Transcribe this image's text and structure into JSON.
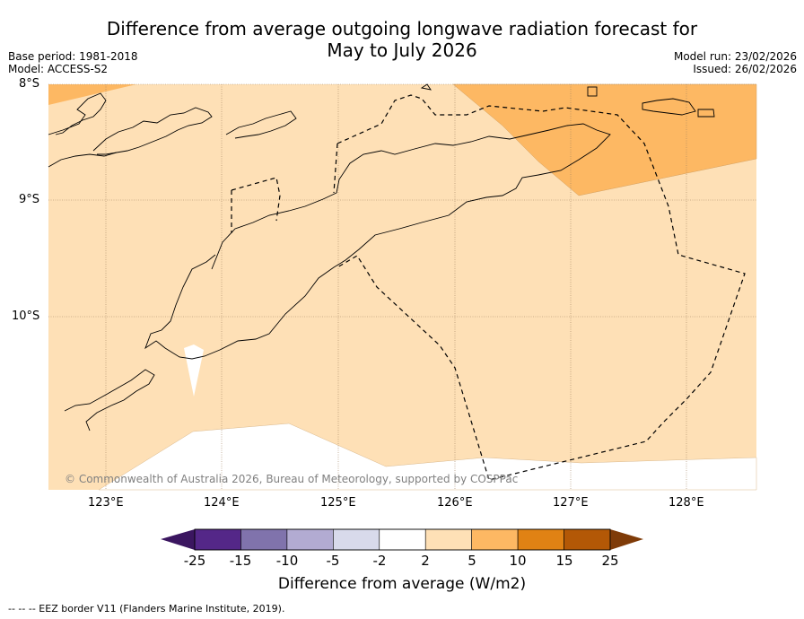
{
  "title_line1": "Difference from average outgoing longwave radiation forecast for",
  "title_line2": "May to July 2026",
  "base_period": "Base period: 1981-2018",
  "model": "Model: ACCESS-S2",
  "model_run": "Model run: 23/02/2026",
  "issued": "Issued: 26/02/2026",
  "lat_labels": [
    "8°S",
    "9°S",
    "10°S"
  ],
  "lon_labels": [
    "123°E",
    "124°E",
    "125°E",
    "126°E",
    "127°E",
    "128°E"
  ],
  "credit": "© Commonwealth of Australia 2026, Bureau of Meteorology, supported by COSPPac",
  "colorbar": {
    "ticks": [
      "-25",
      "-15",
      "-10",
      "-5",
      "-2",
      "2",
      "5",
      "10",
      "15",
      "25"
    ],
    "colors": [
      "#3b1660",
      "#542788",
      "#8073ac",
      "#b2abd2",
      "#d8daeb",
      "#ffffff",
      "#fee0b6",
      "#fdb863",
      "#e08214",
      "#b35806",
      "#7f3b08"
    ],
    "title": "Difference from average (W/m2)"
  },
  "footer": "--  --  -- EEZ border V11 (Flanders Marine Institute, 2019).",
  "colors": {
    "light_orange": "#fee0b6",
    "mid_orange": "#fdb863",
    "white": "#ffffff"
  }
}
